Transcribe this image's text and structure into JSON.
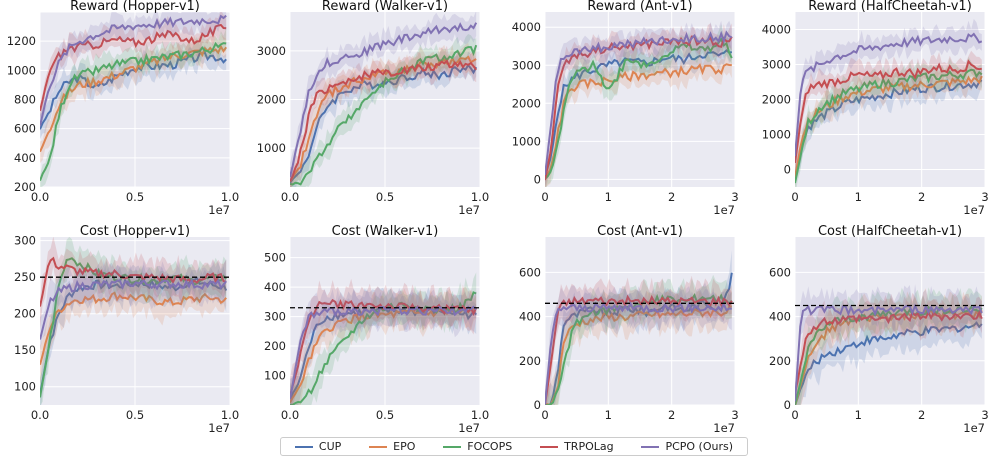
{
  "chart_data": [
    {
      "type": "line",
      "title": "Reward (Hopper-v1)",
      "xlim": [
        0,
        10
      ],
      "ylim": [
        200,
        1400
      ],
      "xticks": [
        "0.0",
        "0.5",
        "1.0"
      ],
      "xtickvals": [
        0,
        5,
        10
      ],
      "yticks": [
        200,
        400,
        600,
        800,
        1000,
        1200,
        1400
      ],
      "ytick_labels": [
        "200",
        "400",
        "600",
        "800",
        "1000",
        "1200",
        ""
      ],
      "xscale_label": "1e7",
      "x": [
        0,
        0.5,
        1,
        1.5,
        2,
        3,
        4,
        5,
        6,
        7,
        8,
        9,
        9.8
      ],
      "series": [
        {
          "name": "CUP",
          "values": [
            600,
            720,
            860,
            920,
            950,
            880,
            960,
            1020,
            1030,
            1040,
            1080,
            1100,
            1080
          ]
        },
        {
          "name": "EPO",
          "values": [
            440,
            600,
            760,
            850,
            900,
            930,
            970,
            1020,
            1060,
            1100,
            1120,
            1140,
            1150
          ]
        },
        {
          "name": "FOCOPS",
          "values": [
            250,
            380,
            700,
            900,
            960,
            1000,
            1040,
            1060,
            1080,
            1100,
            1120,
            1150,
            1170
          ]
        },
        {
          "name": "TRPOLag",
          "values": [
            720,
            1000,
            1100,
            1150,
            1160,
            1180,
            1210,
            1190,
            1220,
            1250,
            1200,
            1260,
            1300
          ]
        },
        {
          "name": "PCPO (Ours)",
          "values": [
            620,
            900,
            1050,
            1150,
            1200,
            1250,
            1290,
            1310,
            1320,
            1330,
            1340,
            1350,
            1350
          ]
        }
      ]
    },
    {
      "type": "line",
      "title": "Reward (Walker-v1)",
      "xlim": [
        0,
        10
      ],
      "ylim": [
        200,
        3800
      ],
      "xticks": [
        "0.0",
        "0.5",
        "1.0"
      ],
      "xtickvals": [
        0,
        5,
        10
      ],
      "yticks": [
        1000,
        2000,
        3000
      ],
      "ytick_labels": [
        "1000",
        "2000",
        "3000"
      ],
      "xscale_label": "1e7",
      "x": [
        0,
        0.5,
        1,
        1.5,
        2,
        3,
        4,
        5,
        6,
        7,
        8,
        9,
        9.8
      ],
      "series": [
        {
          "name": "CUP",
          "values": [
            300,
            500,
            900,
            1500,
            1900,
            2200,
            2300,
            2350,
            2450,
            2550,
            2500,
            2650,
            2600
          ]
        },
        {
          "name": "EPO",
          "values": [
            320,
            600,
            1200,
            1800,
            2100,
            2300,
            2450,
            2550,
            2600,
            2700,
            2750,
            2780,
            2800
          ]
        },
        {
          "name": "FOCOPS",
          "values": [
            250,
            300,
            500,
            800,
            1100,
            1600,
            2000,
            2350,
            2600,
            2800,
            2850,
            2950,
            3050
          ]
        },
        {
          "name": "TRPOLag",
          "values": [
            300,
            800,
            1700,
            2150,
            2250,
            2400,
            2500,
            2550,
            2600,
            2650,
            2700,
            2750,
            2700
          ]
        },
        {
          "name": "PCPO (Ours)",
          "values": [
            400,
            1300,
            2200,
            2600,
            2750,
            2900,
            3000,
            3150,
            3250,
            3350,
            3450,
            3500,
            3550
          ]
        }
      ]
    },
    {
      "type": "line",
      "title": "Reward (Ant-v1)",
      "xlim": [
        0,
        3
      ],
      "ylim": [
        -200,
        4400
      ],
      "xticks": [
        "0",
        "1",
        "2",
        "3"
      ],
      "xtickvals": [
        0,
        1,
        2,
        3
      ],
      "yticks": [
        0,
        1000,
        2000,
        3000,
        4000
      ],
      "ytick_labels": [
        "0",
        "1000",
        "2000",
        "3000",
        "4000"
      ],
      "xscale_label": "1e7",
      "x": [
        0,
        0.1,
        0.2,
        0.3,
        0.4,
        0.6,
        0.8,
        1.0,
        1.3,
        1.6,
        1.9,
        2.2,
        2.5,
        2.8,
        2.95
      ],
      "series": [
        {
          "name": "CUP",
          "values": [
            100,
            600,
            1800,
            2400,
            2600,
            2800,
            2900,
            3000,
            3100,
            3050,
            3200,
            3150,
            3300,
            3250,
            3400
          ]
        },
        {
          "name": "EPO",
          "values": [
            0,
            300,
            1200,
            2000,
            2400,
            2500,
            2550,
            2600,
            2700,
            2750,
            2800,
            2850,
            2900,
            2900,
            2950
          ]
        },
        {
          "name": "FOCOPS",
          "values": [
            0,
            200,
            900,
            1800,
            2600,
            2900,
            3000,
            2300,
            3200,
            3000,
            3300,
            3500,
            3400,
            3600,
            3300
          ]
        },
        {
          "name": "TRPOLag",
          "values": [
            0,
            800,
            2500,
            3000,
            3200,
            3300,
            3400,
            3450,
            3500,
            3550,
            3600,
            3650,
            3650,
            3600,
            3700
          ]
        },
        {
          "name": "PCPO (Ours)",
          "values": [
            100,
            1500,
            2900,
            3200,
            3300,
            3400,
            3450,
            3500,
            3550,
            3600,
            3650,
            3700,
            3700,
            3750,
            3750
          ]
        }
      ]
    },
    {
      "type": "line",
      "title": "Reward (HalfCheetah-v1)",
      "xlim": [
        0,
        3
      ],
      "ylim": [
        -500,
        4500
      ],
      "xticks": [
        "0",
        "1",
        "2",
        "3"
      ],
      "xtickvals": [
        0,
        1,
        2,
        3
      ],
      "yticks": [
        0,
        1000,
        2000,
        3000,
        4000
      ],
      "ytick_labels": [
        "0",
        "1000",
        "2000",
        "3000",
        "4000"
      ],
      "xscale_label": "1e7",
      "x": [
        0,
        0.1,
        0.2,
        0.4,
        0.6,
        0.8,
        1.0,
        1.3,
        1.6,
        1.9,
        2.2,
        2.5,
        2.8,
        2.95
      ],
      "series": [
        {
          "name": "CUP",
          "values": [
            -300,
            600,
            1200,
            1500,
            1700,
            1900,
            2000,
            2100,
            2200,
            2300,
            2350,
            2400,
            2450,
            2500
          ]
        },
        {
          "name": "EPO",
          "values": [
            -200,
            800,
            1400,
            1700,
            1900,
            2100,
            2200,
            2300,
            2350,
            2400,
            2450,
            2500,
            2550,
            2600
          ]
        },
        {
          "name": "FOCOPS",
          "values": [
            -400,
            500,
            1300,
            1800,
            2000,
            2200,
            2300,
            2450,
            2500,
            2600,
            2650,
            2700,
            2750,
            2800
          ]
        },
        {
          "name": "TRPOLag",
          "values": [
            200,
            1500,
            2300,
            2450,
            2500,
            2600,
            2700,
            2650,
            2800,
            2750,
            2900,
            2850,
            3000,
            2900
          ]
        },
        {
          "name": "PCPO (Ours)",
          "values": [
            400,
            2500,
            2800,
            3000,
            3200,
            3300,
            3400,
            3500,
            3600,
            3650,
            3700,
            3750,
            3750,
            3750
          ]
        }
      ]
    },
    {
      "type": "line",
      "title": "Cost (Hopper-v1)",
      "xlim": [
        0,
        10
      ],
      "ylim": [
        75,
        305
      ],
      "threshold": 250,
      "xticks": [
        "0.0",
        "0.5",
        "1.0"
      ],
      "xtickvals": [
        0,
        5,
        10
      ],
      "yticks": [
        100,
        150,
        200,
        250,
        300
      ],
      "ytick_labels": [
        "100",
        "150",
        "200",
        "250",
        "300"
      ],
      "xscale_label": "1e7",
      "x": [
        0,
        0.5,
        1,
        1.5,
        2,
        3,
        4,
        5,
        6,
        7,
        8,
        9,
        9.8
      ],
      "series": [
        {
          "name": "CUP",
          "values": [
            90,
            160,
            200,
            225,
            235,
            240,
            238,
            242,
            240,
            235,
            245,
            240,
            236
          ]
        },
        {
          "name": "EPO",
          "values": [
            130,
            180,
            205,
            215,
            220,
            220,
            225,
            222,
            218,
            215,
            220,
            222,
            218
          ]
        },
        {
          "name": "FOCOPS",
          "values": [
            85,
            160,
            240,
            280,
            270,
            255,
            250,
            248,
            245,
            250,
            245,
            248,
            250
          ]
        },
        {
          "name": "TRPOLag",
          "values": [
            210,
            275,
            265,
            262,
            258,
            255,
            255,
            250,
            250,
            248,
            245,
            250,
            248
          ]
        },
        {
          "name": "PCPO (Ours)",
          "values": [
            165,
            215,
            230,
            235,
            238,
            240,
            240,
            242,
            240,
            241,
            240,
            240,
            240
          ]
        }
      ]
    },
    {
      "type": "line",
      "title": "Cost (Walker-v1)",
      "xlim": [
        0,
        10
      ],
      "ylim": [
        0,
        570
      ],
      "threshold": 330,
      "xticks": [
        "0.0",
        "0.5",
        "1.0"
      ],
      "xtickvals": [
        0,
        5,
        10
      ],
      "yticks": [
        100,
        200,
        300,
        400,
        500
      ],
      "ytick_labels": [
        "100",
        "200",
        "300",
        "400",
        "500"
      ],
      "xscale_label": "1e7",
      "x": [
        0,
        0.5,
        1,
        1.5,
        2,
        3,
        4,
        5,
        6,
        7,
        8,
        9,
        9.8
      ],
      "series": [
        {
          "name": "CUP",
          "values": [
            20,
            80,
            200,
            280,
            300,
            310,
            315,
            320,
            320,
            315,
            320,
            310,
            305
          ]
        },
        {
          "name": "EPO",
          "values": [
            10,
            60,
            150,
            220,
            260,
            290,
            300,
            305,
            310,
            310,
            315,
            315,
            320
          ]
        },
        {
          "name": "FOCOPS",
          "values": [
            0,
            10,
            40,
            100,
            150,
            230,
            300,
            330,
            340,
            330,
            320,
            330,
            380
          ]
        },
        {
          "name": "TRPOLag",
          "values": [
            30,
            150,
            300,
            340,
            345,
            340,
            340,
            335,
            330,
            330,
            325,
            325,
            320
          ]
        },
        {
          "name": "PCPO (Ours)",
          "values": [
            20,
            200,
            300,
            310,
            315,
            320,
            320,
            320,
            322,
            320,
            320,
            320,
            320
          ]
        }
      ]
    },
    {
      "type": "line",
      "title": "Cost (Ant-v1)",
      "xlim": [
        0,
        3
      ],
      "ylim": [
        0,
        760
      ],
      "threshold": 460,
      "xticks": [
        "0",
        "1",
        "2",
        "3"
      ],
      "xtickvals": [
        0,
        1,
        2,
        3
      ],
      "yticks": [
        0,
        200,
        400,
        600
      ],
      "ytick_labels": [
        "0",
        "200",
        "400",
        "600"
      ],
      "xscale_label": "1e7",
      "x": [
        0,
        0.1,
        0.2,
        0.3,
        0.45,
        0.6,
        0.8,
        1.0,
        1.3,
        1.6,
        1.9,
        2.2,
        2.5,
        2.8,
        2.95
      ],
      "series": [
        {
          "name": "CUP",
          "values": [
            0,
            0,
            150,
            380,
            400,
            420,
            430,
            410,
            440,
            420,
            450,
            430,
            460,
            440,
            580
          ]
        },
        {
          "name": "EPO",
          "values": [
            0,
            0,
            80,
            300,
            360,
            380,
            390,
            400,
            400,
            410,
            410,
            415,
            420,
            420,
            430
          ]
        },
        {
          "name": "FOCOPS",
          "values": [
            0,
            0,
            50,
            200,
            350,
            400,
            420,
            430,
            450,
            460,
            480,
            470,
            490,
            480,
            470
          ]
        },
        {
          "name": "TRPOLag",
          "values": [
            0,
            200,
            420,
            460,
            470,
            470,
            475,
            470,
            470,
            470,
            470,
            470,
            470,
            470,
            470
          ]
        },
        {
          "name": "PCPO (Ours)",
          "values": [
            0,
            300,
            440,
            440,
            440,
            440,
            440,
            440,
            440,
            440,
            440,
            440,
            440,
            440,
            440
          ]
        }
      ]
    },
    {
      "type": "line",
      "title": "Cost (HalfCheetah-v1)",
      "xlim": [
        0,
        3
      ],
      "ylim": [
        0,
        760
      ],
      "threshold": 450,
      "xticks": [
        "0",
        "1",
        "2",
        "3"
      ],
      "xtickvals": [
        0,
        1,
        2,
        3
      ],
      "yticks": [
        0,
        200,
        400,
        600
      ],
      "ytick_labels": [
        "0",
        "200",
        "400",
        "600"
      ],
      "xscale_label": "1e7",
      "x": [
        0,
        0.1,
        0.2,
        0.35,
        0.5,
        0.7,
        0.9,
        1.1,
        1.4,
        1.7,
        2.0,
        2.3,
        2.6,
        2.9,
        2.95
      ],
      "series": [
        {
          "name": "CUP",
          "values": [
            0,
            80,
            150,
            200,
            230,
            250,
            270,
            290,
            300,
            320,
            330,
            340,
            350,
            360,
            370
          ]
        },
        {
          "name": "EPO",
          "values": [
            0,
            100,
            200,
            280,
            330,
            360,
            380,
            390,
            400,
            400,
            410,
            410,
            410,
            410,
            410
          ]
        },
        {
          "name": "FOCOPS",
          "values": [
            0,
            120,
            240,
            320,
            360,
            380,
            390,
            400,
            410,
            420,
            420,
            430,
            430,
            430,
            430
          ]
        },
        {
          "name": "TRPOLag",
          "values": [
            50,
            200,
            320,
            360,
            380,
            380,
            390,
            390,
            390,
            400,
            400,
            400,
            400,
            400,
            400
          ]
        },
        {
          "name": "PCPO (Ours)",
          "values": [
            20,
            420,
            430,
            430,
            430,
            430,
            430,
            430,
            430,
            430,
            430,
            430,
            430,
            430,
            430
          ]
        }
      ]
    }
  ],
  "legend": {
    "items": [
      {
        "label": "CUP",
        "color": "#4c72b0"
      },
      {
        "label": "EPO",
        "color": "#dd8452"
      },
      {
        "label": "FOCOPS",
        "color": "#55a868"
      },
      {
        "label": "TRPOLag",
        "color": "#c44e52"
      },
      {
        "label": "PCPO (Ours)",
        "color": "#8172b3"
      }
    ]
  },
  "style": {
    "panel_bg": "#eaeaf2",
    "grid": "#ffffff",
    "threshold_color": "#000000"
  }
}
